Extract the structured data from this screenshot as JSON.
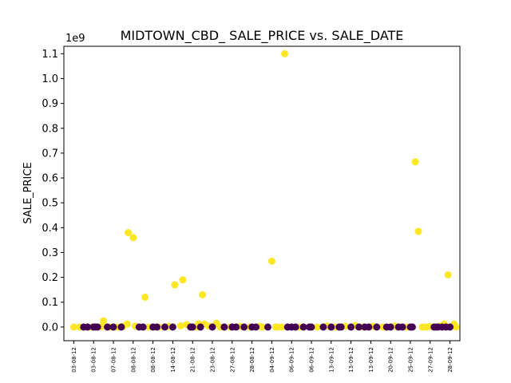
{
  "chart_data": {
    "type": "scatter",
    "title": "MIDTOWN_CBD_ SALE_PRICE vs. SALE_DATE",
    "xlabel": "",
    "ylabel": "SALE_PRICE",
    "y_offset_label": "1e9",
    "ylim": [
      -0.055,
      1.13
    ],
    "xlim": [
      -0.5,
      19.5
    ],
    "y_ticks": [
      "0.0",
      "0.1",
      "0.2",
      "0.3",
      "0.4",
      "0.5",
      "0.6",
      "0.7",
      "0.8",
      "0.9",
      "1.0",
      "1.1"
    ],
    "x_tick_labels": [
      "03-08-12",
      "03-08-12",
      "07-08-12",
      "08-08-12",
      "08-08-12",
      "14-08-12",
      "21-08-12",
      "23-08-12",
      "27-08-12",
      "28-08-12",
      "04-09-12",
      "06-09-12",
      "06-09-12",
      "13-09-12",
      "13-09-12",
      "13-09-12",
      "20-09-12",
      "25-09-12",
      "27-09-12",
      "28-09-12"
    ],
    "grid": false,
    "legend": "none",
    "colors": {
      "class_a": "#fde725",
      "class_b": "#440154"
    },
    "series": [
      {
        "color_key": "class_a",
        "points": [
          [
            0.0,
            0.0
          ],
          [
            0.3,
            0.0
          ],
          [
            0.9,
            0.0
          ],
          [
            1.4,
            0.002
          ],
          [
            1.5,
            0.025
          ],
          [
            1.8,
            0.0
          ],
          [
            2.2,
            0.0
          ],
          [
            2.5,
            0.003
          ],
          [
            2.7,
            0.012
          ],
          [
            2.75,
            0.38
          ],
          [
            3.0,
            0.36
          ],
          [
            3.1,
            0.004
          ],
          [
            3.6,
            0.12
          ],
          [
            3.8,
            0.0
          ],
          [
            4.3,
            0.0
          ],
          [
            4.8,
            0.003
          ],
          [
            5.1,
            0.17
          ],
          [
            5.4,
            0.005
          ],
          [
            5.5,
            0.19
          ],
          [
            5.7,
            0.01
          ],
          [
            6.2,
            0.0
          ],
          [
            6.3,
            0.013
          ],
          [
            6.5,
            0.13
          ],
          [
            6.6,
            0.012
          ],
          [
            6.8,
            0.004
          ],
          [
            7.2,
            0.015
          ],
          [
            7.4,
            0.0
          ],
          [
            7.9,
            0.0
          ],
          [
            8.4,
            0.002
          ],
          [
            8.9,
            0.0
          ],
          [
            9.4,
            0.003
          ],
          [
            9.5,
            0.0
          ],
          [
            10.0,
            0.265
          ],
          [
            10.2,
            0.0
          ],
          [
            10.3,
            0.0
          ],
          [
            10.5,
            0.0
          ],
          [
            10.65,
            1.1
          ],
          [
            11.4,
            0.0
          ],
          [
            12.3,
            0.0
          ],
          [
            12.8,
            0.004
          ],
          [
            13.2,
            0.0
          ],
          [
            13.7,
            0.003
          ],
          [
            14.2,
            0.006
          ],
          [
            14.6,
            0.0
          ],
          [
            15.1,
            0.003
          ],
          [
            15.6,
            0.0
          ],
          [
            16.2,
            0.004
          ],
          [
            16.8,
            0.0
          ],
          [
            17.25,
            0.665
          ],
          [
            17.4,
            0.385
          ],
          [
            17.6,
            0.0
          ],
          [
            17.8,
            0.0
          ],
          [
            18.0,
            0.002
          ],
          [
            18.5,
            0.004
          ],
          [
            18.7,
            0.012
          ],
          [
            18.9,
            0.21
          ],
          [
            19.2,
            0.012
          ],
          [
            19.3,
            0.0
          ]
        ]
      },
      {
        "color_key": "class_b",
        "points": [
          [
            0.5,
            0.0
          ],
          [
            0.7,
            0.0
          ],
          [
            1.0,
            0.0
          ],
          [
            1.1,
            0.0
          ],
          [
            1.2,
            0.0
          ],
          [
            1.7,
            0.0
          ],
          [
            2.0,
            0.0
          ],
          [
            2.4,
            0.0
          ],
          [
            3.3,
            0.0
          ],
          [
            3.5,
            0.0
          ],
          [
            4.0,
            0.0
          ],
          [
            4.2,
            0.0
          ],
          [
            4.6,
            0.0
          ],
          [
            5.0,
            0.0
          ],
          [
            5.9,
            0.0
          ],
          [
            6.0,
            0.0
          ],
          [
            6.4,
            0.0
          ],
          [
            7.0,
            0.0
          ],
          [
            7.6,
            0.0
          ],
          [
            8.0,
            0.0
          ],
          [
            8.2,
            0.0
          ],
          [
            8.6,
            0.0
          ],
          [
            9.0,
            0.0
          ],
          [
            9.2,
            0.0
          ],
          [
            9.8,
            0.0
          ],
          [
            10.8,
            0.0
          ],
          [
            11.0,
            0.0
          ],
          [
            11.2,
            0.0
          ],
          [
            11.6,
            0.0
          ],
          [
            11.9,
            0.0
          ],
          [
            12.0,
            0.0
          ],
          [
            12.6,
            0.0
          ],
          [
            13.0,
            0.0
          ],
          [
            13.4,
            0.0
          ],
          [
            13.5,
            0.0
          ],
          [
            14.0,
            0.0
          ],
          [
            14.4,
            0.0
          ],
          [
            14.7,
            0.0
          ],
          [
            14.9,
            0.0
          ],
          [
            15.3,
            0.0
          ],
          [
            15.8,
            0.0
          ],
          [
            16.0,
            0.0
          ],
          [
            16.4,
            0.0
          ],
          [
            16.6,
            0.0
          ],
          [
            17.0,
            0.0
          ],
          [
            17.1,
            0.0
          ],
          [
            18.2,
            0.0
          ],
          [
            18.3,
            0.0
          ],
          [
            18.4,
            0.0
          ],
          [
            18.6,
            0.0
          ],
          [
            18.8,
            0.0
          ],
          [
            19.0,
            0.0
          ]
        ]
      }
    ]
  }
}
